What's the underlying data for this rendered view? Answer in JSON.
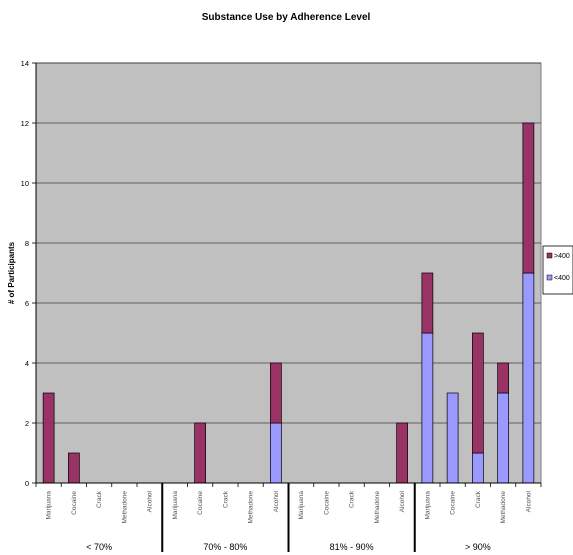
{
  "chart_data": {
    "type": "bar",
    "stacked": true,
    "title": "Substance Use by Adherence Level",
    "ylabel": "# of Participants",
    "xlabel": "",
    "ylim": [
      0,
      14
    ],
    "yticks": [
      0,
      2,
      4,
      6,
      8,
      10,
      12,
      14
    ],
    "grid": true,
    "legend_position": "right",
    "groups": [
      "< 70%",
      "70% - 80%",
      "81% - 90%",
      "> 90%"
    ],
    "categories": [
      "Marijuana",
      "Cocaine",
      "Crack",
      "Methadone",
      "Alcohol",
      "Marijuana",
      "Cocaine",
      "Crack",
      "Methadone",
      "Alcohol",
      "Marijuana",
      "Cocaine",
      "Crack",
      "Methadone",
      "Alcohol",
      "Marijuana",
      "Cocaine",
      "Crack",
      "Methadone",
      "Alcohol"
    ],
    "series": [
      {
        "name": "<400",
        "color": "#9999ff",
        "values": [
          0,
          0,
          0,
          0,
          0,
          0,
          0,
          0,
          0,
          2,
          0,
          0,
          0,
          0,
          0,
          5,
          3,
          1,
          3,
          7
        ]
      },
      {
        "name": ">400",
        "color": "#993366",
        "values": [
          3,
          1,
          0,
          0,
          0,
          0,
          2,
          0,
          0,
          2,
          0,
          0,
          0,
          0,
          2,
          2,
          0,
          4,
          1,
          5
        ]
      }
    ],
    "legend_order": [
      ">400",
      "<400"
    ],
    "plot_background": "#c0c0c0"
  }
}
